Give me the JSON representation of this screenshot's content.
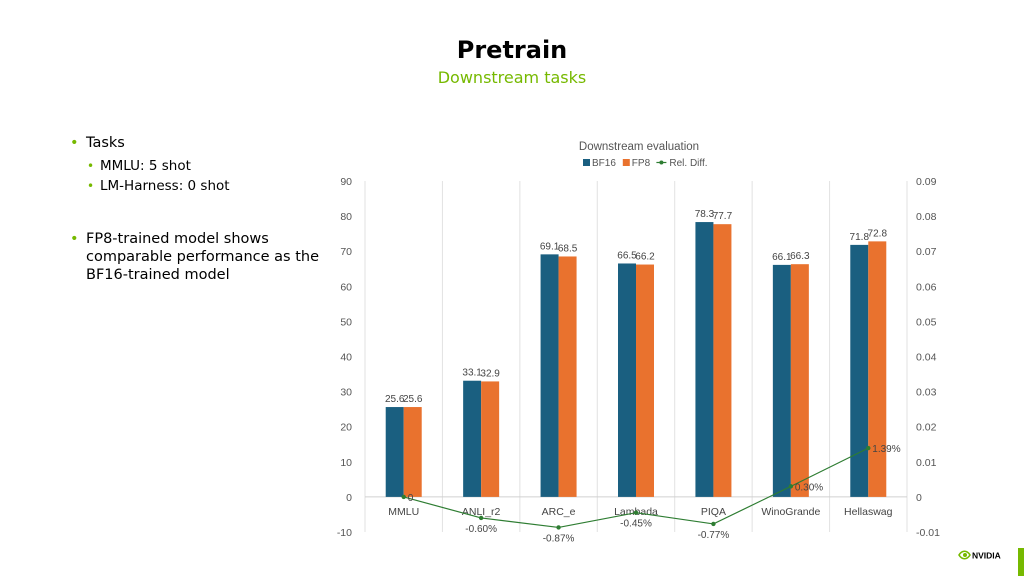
{
  "slide": {
    "title": "Pretrain",
    "subtitle": "Downstream tasks",
    "accent_color": "#76b900"
  },
  "bullets": {
    "tasks": "Tasks",
    "mmlu": "MMLU: 5 shot",
    "lm_harness": "LM-Harness: 0 shot",
    "conclusion": "FP8-trained model shows comparable performance as the BF16-trained model"
  },
  "logo": {
    "text": "NVIDIA",
    "icon": "nvidia-eye-icon"
  },
  "chart_data": {
    "type": "bar",
    "title": "Downstream evaluation",
    "categories": [
      "MMLU",
      "ANLI_r2",
      "ARC_e",
      "Lambada",
      "PIQA",
      "WinoGrande",
      "Hellaswag"
    ],
    "series": [
      {
        "name": "BF16",
        "color": "#1a5f80",
        "values": [
          25.6,
          33.1,
          69.1,
          66.5,
          78.3,
          66.1,
          71.8
        ],
        "labels": [
          "25.6",
          "33.1",
          "69.1",
          "66.5",
          "78.3",
          "66.1",
          "71.8"
        ]
      },
      {
        "name": "FP8",
        "color": "#e9722e",
        "values": [
          25.6,
          32.9,
          68.5,
          66.2,
          77.7,
          66.3,
          72.8
        ],
        "labels": [
          "25.6",
          "32.9",
          "68.5",
          "66.2",
          "77.7",
          "66.3",
          "72.8"
        ]
      }
    ],
    "line_series": {
      "name": "Rel. Diff.",
      "color": "#2e7d32",
      "axis": "secondary",
      "values": [
        0,
        -0.006,
        -0.0087,
        -0.0045,
        -0.0077,
        0.003,
        0.0139
      ],
      "labels": [
        "0",
        "-0.60%",
        "-0.87%",
        "-0.45%",
        "-0.77%",
        "0.30%",
        "1.39%"
      ]
    },
    "y_left": {
      "min": -10,
      "max": 90,
      "step": 10,
      "ticks": [
        "-10",
        "0",
        "10",
        "20",
        "30",
        "40",
        "50",
        "60",
        "70",
        "80",
        "90"
      ]
    },
    "y_right": {
      "min": -0.01,
      "max": 0.09,
      "ticks": [
        "-0.01",
        "0",
        "0.01",
        "0.02",
        "0.03",
        "0.04",
        "0.05",
        "0.06",
        "0.07",
        "0.08",
        "0.09"
      ]
    },
    "legend_position": "top",
    "grid": "vertical"
  }
}
